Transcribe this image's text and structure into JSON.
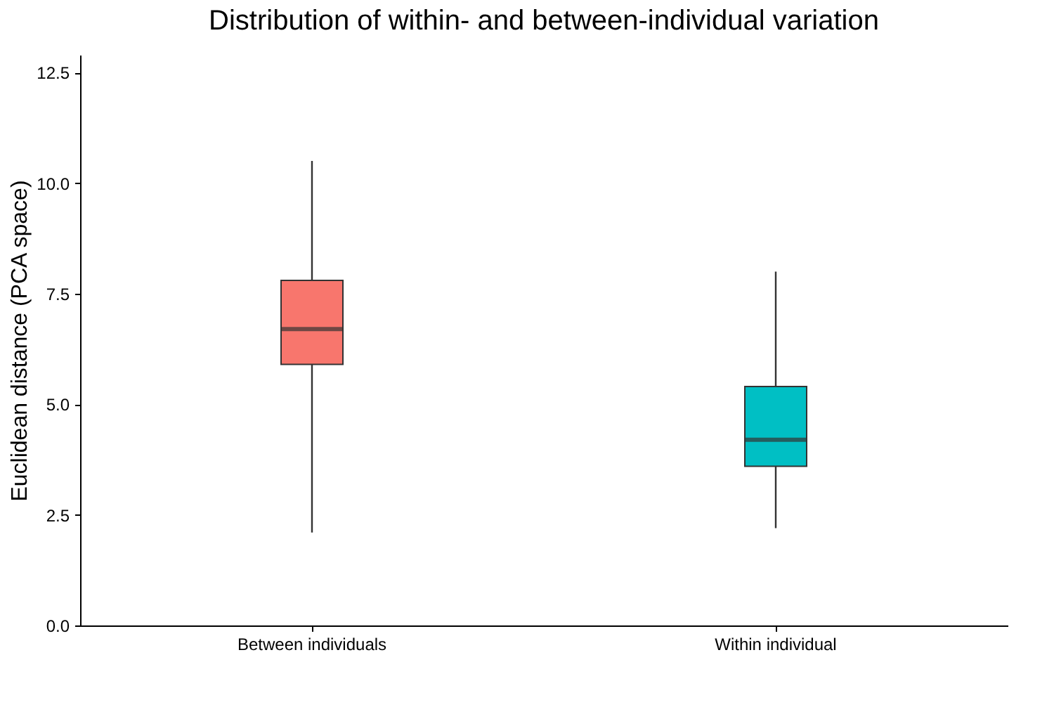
{
  "chart_data": {
    "type": "box",
    "title": "Distribution of within- and between-individual variation",
    "ylabel": "Euclidean distance (PCA space)",
    "categories": [
      "Between individuals",
      "Within individual"
    ],
    "boxes": [
      {
        "low": 2.1,
        "q1": 5.9,
        "median": 6.7,
        "q3": 7.8,
        "high": 10.5
      },
      {
        "low": 2.2,
        "q1": 3.6,
        "median": 4.2,
        "q3": 5.4,
        "high": 8.0
      }
    ],
    "colors": [
      "#f8766d",
      "#00bfc4"
    ],
    "ylim": [
      0,
      12.9
    ],
    "yticks": [
      {
        "value": 0,
        "label": "0.0"
      },
      {
        "value": 2.5,
        "label": "2.5"
      },
      {
        "value": 5,
        "label": "5.0"
      },
      {
        "value": 7.5,
        "label": "7.5"
      },
      {
        "value": 10,
        "label": "10.0"
      },
      {
        "value": 12.5,
        "label": "12.5"
      }
    ],
    "grid": false
  }
}
